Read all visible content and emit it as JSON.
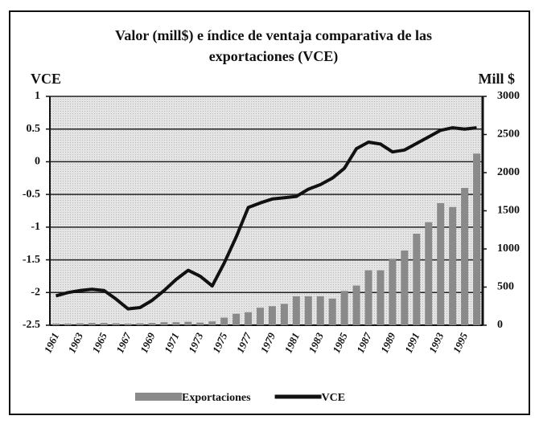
{
  "chart_data": {
    "type": "bar_line",
    "title": [
      "Valor (mill$) e índice de ventaja comparativa de las",
      "exportaciones (VCE)"
    ],
    "y_label": "VCE",
    "y2_label": "Mill $",
    "categories": [
      "1961",
      null,
      "1963",
      null,
      "1965",
      null,
      "1967",
      null,
      "1969",
      null,
      "1971",
      null,
      "1973",
      null,
      "1975",
      null,
      "1977",
      null,
      "1979",
      null,
      "1981",
      null,
      "1983",
      null,
      "1985",
      null,
      "1987",
      null,
      "1989",
      null,
      "1991",
      null,
      "1993",
      null,
      "1995",
      null
    ],
    "series": [
      {
        "name": "Exportaciones",
        "type": "bar",
        "axis": "y2",
        "color": "#8a8a8a",
        "values": [
          20,
          20,
          25,
          30,
          30,
          25,
          20,
          25,
          30,
          40,
          40,
          45,
          35,
          50,
          100,
          150,
          170,
          230,
          250,
          280,
          380,
          380,
          380,
          350,
          450,
          520,
          720,
          720,
          870,
          980,
          1200,
          1350,
          1600,
          1550,
          1800,
          2250
        ]
      },
      {
        "name": "VCE",
        "type": "line",
        "axis": "y",
        "color": "#111111",
        "values": [
          -2.05,
          -2.0,
          -1.97,
          -1.95,
          -1.97,
          -2.1,
          -2.25,
          -2.23,
          -2.12,
          -1.97,
          -1.8,
          -1.66,
          -1.75,
          -1.9,
          -1.55,
          -1.15,
          -0.7,
          -0.63,
          -0.57,
          -0.55,
          -0.53,
          -0.42,
          -0.35,
          -0.25,
          -0.1,
          0.2,
          0.3,
          0.27,
          0.15,
          0.18,
          0.28,
          0.38,
          0.48,
          0.52,
          0.5,
          0.52
        ]
      }
    ],
    "ylim": [
      -2.5,
      1
    ],
    "yticks": [
      -2.5,
      -2,
      -1.5,
      -1,
      -0.5,
      0,
      0.5,
      1
    ],
    "y2lim": [
      0,
      3000
    ],
    "y2ticks": [
      0,
      500,
      1000,
      1500,
      2000,
      2500,
      3000
    ],
    "grid": true,
    "legend": "bottom"
  }
}
